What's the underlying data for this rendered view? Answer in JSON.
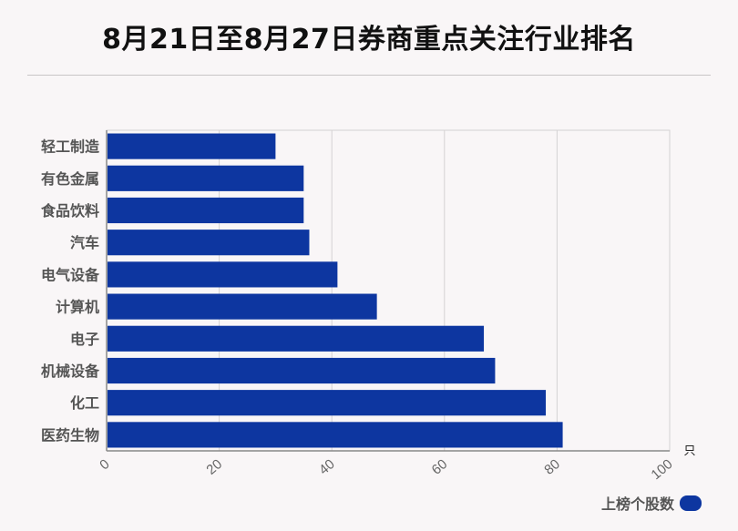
{
  "title": "8月21日至8月27日券商重点关注行业排名",
  "colors": {
    "bar": "#0d36a0",
    "grid": "#d4d2d3",
    "axis": "#888888",
    "tick_label": "#666666"
  },
  "chart_data": {
    "type": "bar",
    "orientation": "horizontal",
    "categories": [
      "轻工制造",
      "有色金属",
      "食品饮料",
      "汽车",
      "电气设备",
      "计算机",
      "电子",
      "机械设备",
      "化工",
      "医药生物"
    ],
    "series": [
      {
        "name": "上榜个股数",
        "values": [
          30,
          35,
          35,
          36,
          41,
          48,
          67,
          69,
          78,
          81
        ]
      }
    ],
    "xlim": [
      0,
      100
    ],
    "xticks": [
      0,
      20,
      40,
      60,
      80,
      100
    ],
    "xlabel": "只",
    "ylabel": "",
    "grid": true,
    "legend_position": "bottom-right"
  }
}
